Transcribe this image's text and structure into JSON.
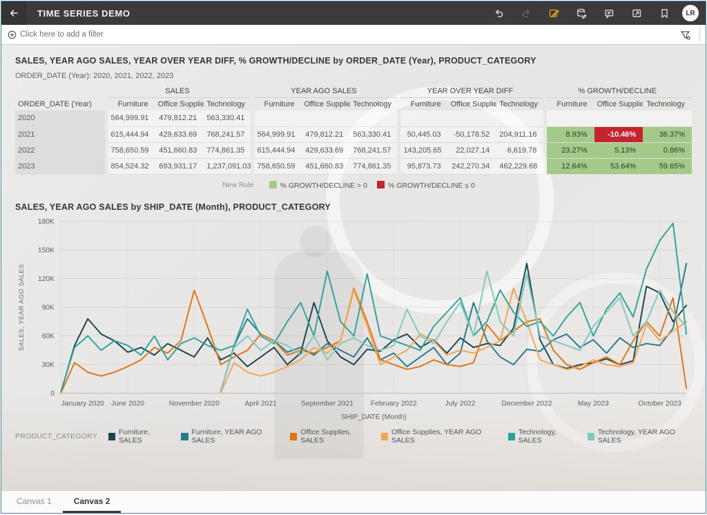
{
  "window": {
    "title": "TIME SERIES DEMO",
    "avatar": "LR"
  },
  "header": {
    "icons": [
      {
        "name": "undo-icon"
      },
      {
        "name": "redo-icon",
        "disabled": true
      },
      {
        "name": "edit-icon",
        "accent": true
      },
      {
        "name": "edit-data-icon"
      },
      {
        "name": "comment-icon"
      },
      {
        "name": "present-icon"
      },
      {
        "name": "bookmark-icon"
      }
    ]
  },
  "filter_bar": {
    "add_label": "Click here to add a filter",
    "icons": [
      "add-filter-icon",
      "filter-funnel-icon"
    ]
  },
  "viz1": {
    "title": "SALES, YEAR AGO SALES, YEAR OVER YEAR DIFF, % GROWTH/DECLINE by ORDER_DATE (Year), PRODUCT_CATEGORY",
    "subtitle": "ORDER_DATE (Year): 2020, 2021, 2022, 2023",
    "rule_legend": {
      "label": "New Rule",
      "items": [
        {
          "label": "% GROWTH/DECLINE > 0",
          "color": "#a3ca89"
        },
        {
          "label": "% GROWTH/DECLINE ≤ 0",
          "color": "#c5242c"
        }
      ]
    }
  },
  "viz2": {
    "title": "SALES, YEAR AGO SALES by SHIP_DATE (Month), PRODUCT_CATEGORY"
  },
  "tabs": [
    {
      "label": "Canvas 1",
      "active": false
    },
    {
      "label": "Canvas 2",
      "active": true
    }
  ],
  "chart_data": [
    {
      "type": "table",
      "title": "SALES, YEAR AGO SALES, YEAR OVER YEAR DIFF, % GROWTH/DECLINE by ORDER_DATE (Year), PRODUCT_CATEGORY",
      "row_header": "ORDER_DATE (Year)",
      "groups": [
        "SALES",
        "YEAR AGO SALES",
        "YEAR OVER YEAR DIFF",
        "% GROWTH/DECLINE"
      ],
      "categories": [
        "Furniture",
        "Office Supplies",
        "Technology"
      ],
      "rows": [
        {
          "year": "2020",
          "cells": [
            "564,999.91",
            "479,812.21",
            "563,330.41",
            "",
            "",
            "",
            "",
            "",
            "",
            "",
            "",
            ""
          ]
        },
        {
          "year": "2021",
          "cells": [
            "615,444.94",
            "429,633.69",
            "768,241.57",
            "564,999.91",
            "479,812.21",
            "563,330.41",
            "50,445.03",
            "-50,178.52",
            "204,911.16",
            "8.93%",
            "-10.46%",
            "36.37%"
          ]
        },
        {
          "year": "2022",
          "cells": [
            "758,650.59",
            "451,660.83",
            "774,861.35",
            "615,444.94",
            "429,633.69",
            "768,241.57",
            "143,205.65",
            "22,027.14",
            "6,619.78",
            "23.27%",
            "5.13%",
            "0.86%"
          ]
        },
        {
          "year": "2023",
          "cells": [
            "854,524.32",
            "693,931.17",
            "1,237,091.03",
            "758,650.59",
            "451,660.83",
            "774,861.35",
            "95,873.73",
            "242,270.34",
            "462,229.68",
            "12.64%",
            "53.64%",
            "59.65%"
          ]
        }
      ],
      "conditional_format": {
        "positive_color": "#a3ca89",
        "negative_color": "#c5242c",
        "applies_to_group": "% GROWTH/DECLINE"
      }
    },
    {
      "type": "line",
      "title": "SALES, YEAR AGO SALES by SHIP_DATE (Month), PRODUCT_CATEGORY",
      "xlabel": "SHIP_DATE (Month)",
      "ylabel": "SALES, YEAR AGO SALES",
      "unit": "thousands",
      "ylim": [
        0,
        180
      ],
      "y_ticks": [
        "0",
        "30K",
        "60K",
        "90K",
        "120K",
        "150K",
        "180K"
      ],
      "n_points": 48,
      "x_range": [
        "January 2020",
        "December 2023"
      ],
      "x_tick_positions": [
        0,
        5,
        10,
        15,
        20,
        25,
        30,
        35,
        40,
        45
      ],
      "x_tick_labels": [
        "January 2020",
        "June 2020",
        "November 2020",
        "April 2021",
        "September 2021",
        "February 2022",
        "July 2022",
        "December 2022",
        "May 2023",
        "October 2023"
      ],
      "legend_label": "PRODUCT_CATEGORY",
      "series": [
        {
          "name": "Furniture, SALES",
          "color": "#19454f",
          "values": [
            2,
            50,
            78,
            62,
            55,
            43,
            48,
            40,
            52,
            45,
            38,
            58,
            35,
            42,
            28,
            38,
            48,
            30,
            42,
            95,
            55,
            38,
            30,
            46,
            44,
            56,
            62,
            48,
            56,
            42,
            58,
            48,
            52,
            50,
            68,
            136,
            56,
            30,
            26,
            30,
            32,
            36,
            30,
            34,
            112,
            105,
            75,
            92
          ]
        },
        {
          "name": "Furniture, YEAR AGO SALES",
          "color": "#27798a",
          "values": [
            null,
            null,
            null,
            null,
            null,
            null,
            null,
            null,
            null,
            null,
            null,
            null,
            2,
            50,
            78,
            62,
            55,
            43,
            48,
            40,
            52,
            45,
            38,
            58,
            35,
            42,
            28,
            38,
            48,
            30,
            42,
            95,
            55,
            38,
            30,
            46,
            44,
            56,
            62,
            48,
            56,
            42,
            58,
            48,
            52,
            50,
            68,
            136
          ]
        },
        {
          "name": "Office Supplies, SALES",
          "color": "#dd7615",
          "values": [
            1,
            32,
            22,
            18,
            22,
            28,
            35,
            48,
            42,
            55,
            108,
            70,
            30,
            38,
            45,
            62,
            55,
            40,
            45,
            42,
            48,
            55,
            110,
            75,
            35,
            30,
            25,
            28,
            35,
            30,
            28,
            32,
            72,
            55,
            65,
            75,
            78,
            45,
            30,
            25,
            32,
            38,
            30,
            55,
            75,
            60,
            100,
            5
          ]
        },
        {
          "name": "Office Supplies, YEAR AGO SALES",
          "color": "#f2a64f",
          "values": [
            null,
            null,
            null,
            null,
            null,
            null,
            null,
            null,
            null,
            null,
            null,
            null,
            1,
            32,
            22,
            18,
            22,
            28,
            35,
            48,
            42,
            55,
            108,
            70,
            30,
            38,
            45,
            62,
            55,
            40,
            45,
            42,
            48,
            55,
            110,
            75,
            35,
            30,
            25,
            28,
            35,
            30,
            28,
            32,
            72,
            55,
            65,
            75
          ]
        },
        {
          "name": "Technology, SALES",
          "color": "#2fa39a",
          "values": [
            3,
            48,
            60,
            45,
            55,
            50,
            40,
            60,
            35,
            52,
            58,
            50,
            45,
            50,
            88,
            60,
            52,
            75,
            95,
            60,
            128,
            75,
            60,
            125,
            60,
            55,
            50,
            45,
            70,
            85,
            100,
            60,
            75,
            108,
            85,
            70,
            75,
            60,
            80,
            95,
            60,
            88,
            105,
            80,
            130,
            160,
            178,
            62
          ]
        },
        {
          "name": "Technology, YEAR AGO SALES",
          "color": "#7fc9bd",
          "values": [
            null,
            null,
            null,
            null,
            null,
            null,
            null,
            null,
            null,
            null,
            null,
            null,
            3,
            48,
            60,
            45,
            55,
            50,
            40,
            60,
            35,
            52,
            58,
            50,
            45,
            50,
            88,
            60,
            52,
            75,
            95,
            60,
            128,
            75,
            60,
            125,
            60,
            55,
            50,
            45,
            70,
            85,
            100,
            60,
            75,
            108,
            85,
            70
          ]
        }
      ],
      "grid": "horizontal",
      "legend_position": "bottom"
    }
  ]
}
